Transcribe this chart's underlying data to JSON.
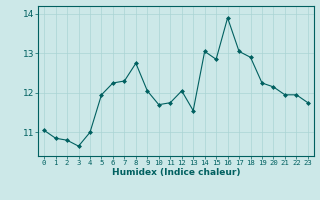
{
  "x": [
    0,
    1,
    2,
    3,
    4,
    5,
    6,
    7,
    8,
    9,
    10,
    11,
    12,
    13,
    14,
    15,
    16,
    17,
    18,
    19,
    20,
    21,
    22,
    23
  ],
  "y": [
    11.05,
    10.85,
    10.8,
    10.65,
    11.0,
    11.95,
    12.25,
    12.3,
    12.75,
    12.05,
    11.7,
    11.75,
    12.05,
    11.55,
    13.05,
    12.85,
    13.9,
    13.05,
    12.9,
    12.25,
    12.15,
    11.95,
    11.95,
    11.75
  ],
  "line_color": "#006060",
  "marker": "D",
  "marker_size": 2.0,
  "bg_color": "#cce8e8",
  "grid_color": "#aad4d4",
  "xlabel": "Humidex (Indice chaleur)",
  "tick_color": "#006060",
  "ylim": [
    10.4,
    14.2
  ],
  "xlim": [
    -0.5,
    23.5
  ],
  "yticks": [
    11,
    12,
    13,
    14
  ],
  "xticks": [
    0,
    1,
    2,
    3,
    4,
    5,
    6,
    7,
    8,
    9,
    10,
    11,
    12,
    13,
    14,
    15,
    16,
    17,
    18,
    19,
    20,
    21,
    22,
    23
  ],
  "spine_color": "#006060",
  "grid_minor_color": "#bbdddd"
}
